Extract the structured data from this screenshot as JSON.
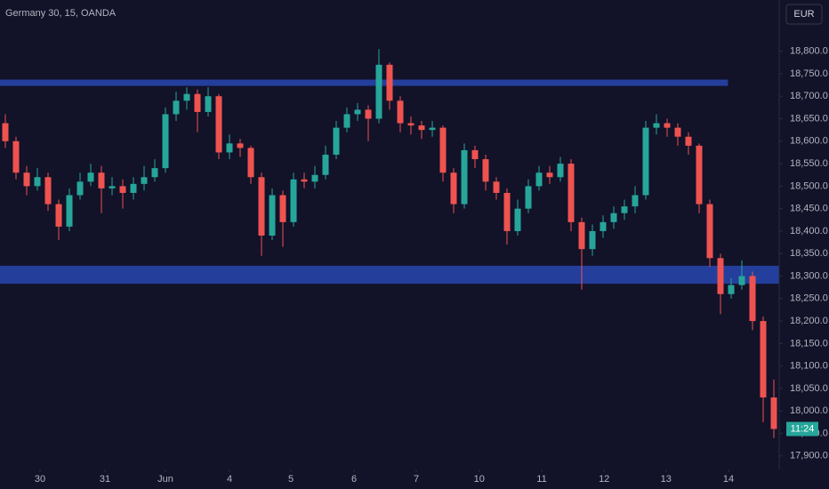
{
  "chart_data": {
    "type": "candlestick",
    "title": "Germany 30, 15, OANDA",
    "currency": "EUR",
    "last_label": "11:24",
    "up_color": "#26a69a",
    "down_color": "#ef5350",
    "grid": false,
    "open": [
      18640,
      18600,
      18530,
      18500,
      18520,
      18460,
      18410,
      18480,
      18510,
      18530,
      18495,
      18500,
      18485,
      18505,
      18520,
      18540,
      18660,
      18690,
      18705,
      18665,
      18700,
      18575,
      18595,
      18585,
      18520,
      18390,
      18480,
      18420,
      18515,
      18510,
      18525,
      18570,
      18630,
      18660,
      18670,
      18650,
      18770,
      18690,
      18640,
      18635,
      18625,
      18630,
      18530,
      18460,
      18580,
      18560,
      18510,
      18485,
      18400,
      18450,
      18500,
      18530,
      18520,
      18550,
      18420,
      18360,
      18400,
      18420,
      18440,
      18455,
      18480,
      18630,
      18640,
      18630,
      18610,
      18590,
      18460,
      18340,
      18260,
      18280,
      18300,
      18200,
      18030
    ],
    "high": [
      18660,
      18610,
      18545,
      18540,
      18530,
      18470,
      18495,
      18530,
      18550,
      18545,
      18520,
      18515,
      18520,
      18545,
      18560,
      18675,
      18710,
      18720,
      18715,
      18720,
      18705,
      18615,
      18605,
      18590,
      18530,
      18495,
      18490,
      18530,
      18530,
      18545,
      18590,
      18645,
      18675,
      18685,
      18680,
      18805,
      18775,
      18700,
      18655,
      18645,
      18645,
      18635,
      18540,
      18595,
      18590,
      18570,
      18520,
      18495,
      18470,
      18515,
      18545,
      18545,
      18565,
      18560,
      18430,
      18415,
      18435,
      18455,
      18470,
      18500,
      18645,
      18660,
      18650,
      18640,
      18620,
      18595,
      18470,
      18350,
      18295,
      18335,
      18310,
      18210,
      18070
    ],
    "low": [
      18585,
      18515,
      18480,
      18490,
      18445,
      18380,
      18400,
      18470,
      18500,
      18440,
      18480,
      18450,
      18470,
      18490,
      18510,
      18530,
      18645,
      18670,
      18620,
      18655,
      18560,
      18560,
      18565,
      18505,
      18345,
      18380,
      18365,
      18410,
      18495,
      18495,
      18515,
      18560,
      18620,
      18645,
      18600,
      18640,
      18670,
      18620,
      18615,
      18605,
      18610,
      18510,
      18440,
      18450,
      18540,
      18490,
      18470,
      18370,
      18390,
      18440,
      18490,
      18505,
      18510,
      18400,
      18270,
      18345,
      18385,
      18405,
      18425,
      18440,
      18470,
      18615,
      18610,
      18590,
      18570,
      18440,
      18320,
      18215,
      18250,
      18270,
      18180,
      17975,
      17940
    ],
    "close": [
      18600,
      18530,
      18500,
      18520,
      18460,
      18410,
      18480,
      18510,
      18530,
      18495,
      18500,
      18485,
      18505,
      18520,
      18540,
      18660,
      18690,
      18705,
      18665,
      18700,
      18575,
      18595,
      18585,
      18520,
      18390,
      18480,
      18420,
      18515,
      18510,
      18525,
      18570,
      18630,
      18660,
      18670,
      18650,
      18770,
      18690,
      18640,
      18635,
      18625,
      18630,
      18530,
      18460,
      18580,
      18560,
      18510,
      18485,
      18400,
      18450,
      18500,
      18530,
      18520,
      18550,
      18420,
      18360,
      18400,
      18420,
      18440,
      18455,
      18480,
      18630,
      18640,
      18630,
      18610,
      18590,
      18460,
      18340,
      18260,
      18280,
      18300,
      18200,
      18030,
      17960
    ],
    "zones": [
      {
        "low": 18723,
        "high": 18737,
        "end": 67.7,
        "color": "#2847b0"
      },
      {
        "low": 18283,
        "high": 18323,
        "color": "#2847b0"
      }
    ],
    "xlim": [
      -0.5,
      72.5
    ],
    "xticks": [
      {
        "value": 3.25,
        "label": "30"
      },
      {
        "value": 9.33,
        "label": "31"
      },
      {
        "value": 15,
        "label": "Jun"
      },
      {
        "value": 21,
        "label": "4"
      },
      {
        "value": 26.75,
        "label": "5"
      },
      {
        "value": 32.67,
        "label": "6"
      },
      {
        "value": 38.5,
        "label": "7"
      },
      {
        "value": 44.4,
        "label": "10"
      },
      {
        "value": 50.25,
        "label": "11"
      },
      {
        "value": 56.1,
        "label": "12"
      },
      {
        "value": 61.9,
        "label": "13"
      },
      {
        "value": 67.75,
        "label": "14"
      }
    ],
    "ylim": [
      17870,
      18914
    ],
    "yticks": [
      {
        "value": 17900,
        "label": "17,900.0"
      },
      {
        "value": 17950,
        "label": "17,950.0"
      },
      {
        "value": 18000,
        "label": "18,000.0"
      },
      {
        "value": 18050,
        "label": "18,050.0"
      },
      {
        "value": 18100,
        "label": "18,100.0"
      },
      {
        "value": 18150,
        "label": "18,150.0"
      },
      {
        "value": 18200,
        "label": "18,200.0"
      },
      {
        "value": 18250,
        "label": "18,250.0"
      },
      {
        "value": 18300,
        "label": "18,300.0"
      },
      {
        "value": 18350,
        "label": "18,350.0"
      },
      {
        "value": 18400,
        "label": "18,400.0"
      },
      {
        "value": 18450,
        "label": "18,450.0"
      },
      {
        "value": 18500,
        "label": "18,500.0"
      },
      {
        "value": 18550,
        "label": "18,550.0"
      },
      {
        "value": 18600,
        "label": "18,600.0"
      },
      {
        "value": 18650,
        "label": "18,650.0"
      },
      {
        "value": 18700,
        "label": "18,700.0"
      },
      {
        "value": 18750,
        "label": "18,750.0"
      },
      {
        "value": 18800,
        "label": "18,800.0"
      }
    ]
  }
}
